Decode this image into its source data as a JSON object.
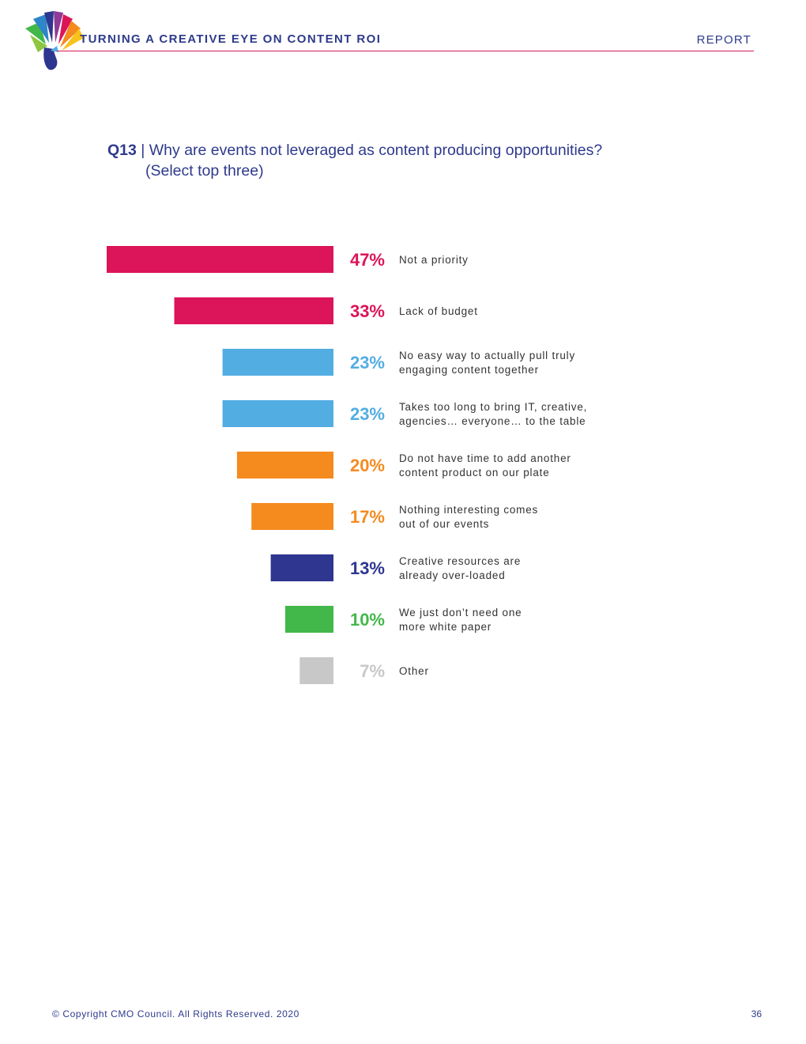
{
  "header": {
    "title": "TURNING A CREATIVE EYE ON CONTENT ROI",
    "section": "REPORT"
  },
  "question": {
    "number": "Q13",
    "separator": "|",
    "text_line1": "Why are events not leveraged as content producing opportunities?",
    "text_line2": "(Select top three)"
  },
  "chart_data": {
    "type": "bar",
    "orientation": "horizontal",
    "categories": [
      [
        "Not a priority"
      ],
      [
        "Lack of budget"
      ],
      [
        "No easy way to actually pull truly",
        "engaging content together"
      ],
      [
        "Takes too long to bring IT, creative,",
        "agencies… everyone… to the table"
      ],
      [
        "Do not have time to add another",
        "content product on our plate"
      ],
      [
        "Nothing interesting comes",
        "out of our events"
      ],
      [
        "Creative resources are",
        "already over-loaded"
      ],
      [
        "We just don’t need one",
        "more white paper"
      ],
      [
        "Other"
      ]
    ],
    "values": [
      47,
      33,
      23,
      23,
      20,
      17,
      13,
      10,
      7
    ],
    "value_labels": [
      "47%",
      "33%",
      "23%",
      "23%",
      "20%",
      "17%",
      "13%",
      "10%",
      "7%"
    ],
    "colors": [
      "#dc1459",
      "#dc1459",
      "#52ade2",
      "#52ade2",
      "#f58a1f",
      "#f58a1f",
      "#2e368f",
      "#43b84a",
      "#c8c8c8"
    ],
    "xlim": [
      0,
      47
    ]
  },
  "footer": {
    "copyright": "© Copyright CMO Council. All Rights Reserved. 2020",
    "page_number": "36"
  }
}
